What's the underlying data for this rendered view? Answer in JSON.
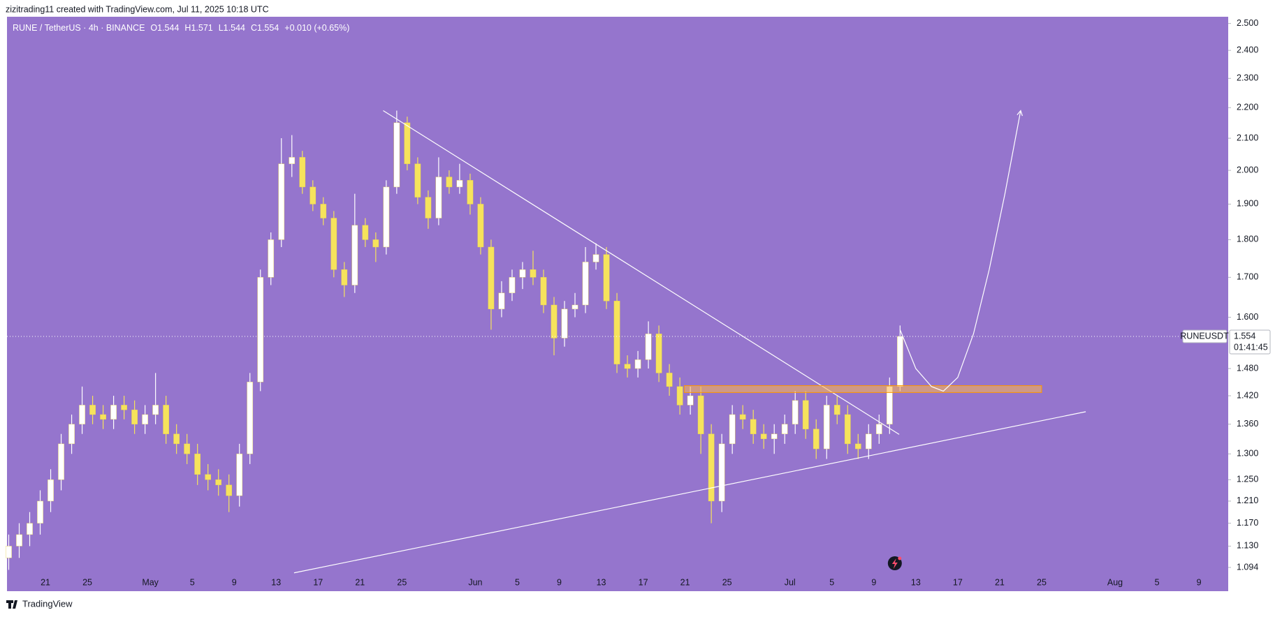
{
  "header": "zizitrading11 created with TradingView.com, Jul 11, 2025 10:18 UTC",
  "footer": "TradingView",
  "chart_data": {
    "type": "candlestick",
    "symbol": "RUNE / TetherUS · 4h · BINANCE",
    "quote": [
      "O1.544",
      "H1.571",
      "L1.544",
      "C1.554",
      "+0.010 (+0.65%)"
    ],
    "ticker": "RUNEUSDT",
    "last_price": 1.554,
    "countdown": "01:41:45",
    "up_color": "#ffffff",
    "down_color": "#f6e35c",
    "background": "#9575cd",
    "log_scale": true,
    "ylim": [
      1.079,
      2.515
    ],
    "yticks": [
      {
        "value": 2.5,
        "label": "2.500"
      },
      {
        "value": 2.4,
        "label": "2.400"
      },
      {
        "value": 2.3,
        "label": "2.300"
      },
      {
        "value": 2.2,
        "label": "2.200"
      },
      {
        "value": 2.1,
        "label": "2.100"
      },
      {
        "value": 2.0,
        "label": "2.000"
      },
      {
        "value": 1.9,
        "label": "1.900"
      },
      {
        "value": 1.8,
        "label": "1.800"
      },
      {
        "value": 1.7,
        "label": "1.700"
      },
      {
        "value": 1.6,
        "label": "1.600"
      },
      {
        "value": 1.48,
        "label": "1.480"
      },
      {
        "value": 1.42,
        "label": "1.420"
      },
      {
        "value": 1.36,
        "label": "1.360"
      },
      {
        "value": 1.3,
        "label": "1.300"
      },
      {
        "value": 1.25,
        "label": "1.250"
      },
      {
        "value": 1.21,
        "label": "1.210"
      },
      {
        "value": 1.17,
        "label": "1.170"
      },
      {
        "value": 1.13,
        "label": "1.130"
      },
      1.094
    ],
    "xlim": [
      "2025-04-17T08:00",
      "2025-08-11T19:00"
    ],
    "xticks": [
      {
        "value": "2025-04-21",
        "label": "21"
      },
      {
        "value": "2025-04-25",
        "label": "25"
      },
      {
        "value": "2025-05-01",
        "label": "May"
      },
      {
        "value": "2025-05-05",
        "label": "5"
      },
      {
        "value": "2025-05-09",
        "label": "9"
      },
      {
        "value": "2025-05-13",
        "label": "13"
      },
      {
        "value": "2025-05-17",
        "label": "17"
      },
      {
        "value": "2025-05-21",
        "label": "21"
      },
      {
        "value": "2025-05-25",
        "label": "25"
      },
      {
        "value": "2025-06-01",
        "label": "Jun"
      },
      {
        "value": "2025-06-05",
        "label": "5"
      },
      {
        "value": "2025-06-09",
        "label": "9"
      },
      {
        "value": "2025-06-13",
        "label": "13"
      },
      {
        "value": "2025-06-17",
        "label": "17"
      },
      {
        "value": "2025-06-21",
        "label": "21"
      },
      {
        "value": "2025-06-25",
        "label": "25"
      },
      {
        "value": "2025-07-01",
        "label": "Jul"
      },
      {
        "value": "2025-07-05",
        "label": "5"
      },
      {
        "value": "2025-07-09",
        "label": "9"
      },
      {
        "value": "2025-07-13",
        "label": "13"
      },
      {
        "value": "2025-07-17",
        "label": "17"
      },
      {
        "value": "2025-07-21",
        "label": "21"
      },
      {
        "value": "2025-07-25",
        "label": "25"
      },
      {
        "value": "2025-08-01",
        "label": "Aug"
      },
      {
        "value": "2025-08-05",
        "label": "5"
      },
      {
        "value": "2025-08-09",
        "label": "9"
      }
    ],
    "x": [
      "2025-04-17",
      "2025-04-18",
      "2025-04-19",
      "2025-04-20",
      "2025-04-21",
      "2025-04-22",
      "2025-04-23",
      "2025-04-24",
      "2025-04-25",
      "2025-04-26",
      "2025-04-27",
      "2025-04-28",
      "2025-04-29",
      "2025-04-30",
      "2025-05-01",
      "2025-05-02",
      "2025-05-03",
      "2025-05-04",
      "2025-05-05",
      "2025-05-06",
      "2025-05-07",
      "2025-05-08",
      "2025-05-09",
      "2025-05-10",
      "2025-05-11",
      "2025-05-12",
      "2025-05-13",
      "2025-05-14",
      "2025-05-15",
      "2025-05-16",
      "2025-05-17",
      "2025-05-18",
      "2025-05-19",
      "2025-05-20",
      "2025-05-21",
      "2025-05-22",
      "2025-05-23",
      "2025-05-24",
      "2025-05-25",
      "2025-05-26",
      "2025-05-27",
      "2025-05-28",
      "2025-05-29",
      "2025-05-30",
      "2025-05-31",
      "2025-06-01",
      "2025-06-02",
      "2025-06-03",
      "2025-06-04",
      "2025-06-05",
      "2025-06-06",
      "2025-06-07",
      "2025-06-08",
      "2025-06-09",
      "2025-06-10",
      "2025-06-11",
      "2025-06-12",
      "2025-06-13",
      "2025-06-14",
      "2025-06-15",
      "2025-06-16",
      "2025-06-17",
      "2025-06-18",
      "2025-06-19",
      "2025-06-20",
      "2025-06-21",
      "2025-06-22",
      "2025-06-23",
      "2025-06-24",
      "2025-06-25",
      "2025-06-26",
      "2025-06-27",
      "2025-06-28",
      "2025-06-29",
      "2025-06-30",
      "2025-07-01",
      "2025-07-02",
      "2025-07-03",
      "2025-07-04",
      "2025-07-05",
      "2025-07-06",
      "2025-07-07",
      "2025-07-08",
      "2025-07-09",
      "2025-07-10",
      "2025-07-11"
    ],
    "open": [
      1.11,
      1.13,
      1.15,
      1.17,
      1.21,
      1.25,
      1.32,
      1.36,
      1.4,
      1.38,
      1.37,
      1.4,
      1.39,
      1.36,
      1.38,
      1.4,
      1.34,
      1.32,
      1.3,
      1.26,
      1.25,
      1.24,
      1.22,
      1.3,
      1.45,
      1.7,
      1.8,
      2.02,
      2.04,
      1.95,
      1.9,
      1.86,
      1.72,
      1.68,
      1.84,
      1.8,
      1.78,
      1.95,
      2.15,
      2.02,
      1.92,
      1.86,
      1.98,
      1.95,
      1.97,
      1.9,
      1.78,
      1.62,
      1.66,
      1.7,
      1.72,
      1.7,
      1.63,
      1.55,
      1.62,
      1.63,
      1.74,
      1.76,
      1.64,
      1.49,
      1.48,
      1.5,
      1.56,
      1.47,
      1.44,
      1.4,
      1.42,
      1.34,
      1.21,
      1.32,
      1.38,
      1.37,
      1.34,
      1.33,
      1.34,
      1.36,
      1.41,
      1.35,
      1.31,
      1.4,
      1.38,
      1.32,
      1.31,
      1.34,
      1.36,
      1.44
    ],
    "high": [
      1.15,
      1.17,
      1.19,
      1.23,
      1.27,
      1.34,
      1.38,
      1.44,
      1.42,
      1.4,
      1.42,
      1.42,
      1.41,
      1.4,
      1.47,
      1.42,
      1.36,
      1.34,
      1.32,
      1.28,
      1.27,
      1.26,
      1.32,
      1.47,
      1.72,
      1.82,
      2.1,
      2.11,
      2.06,
      1.97,
      1.92,
      1.88,
      1.74,
      1.93,
      1.86,
      1.82,
      1.97,
      2.19,
      2.17,
      2.04,
      1.94,
      2.04,
      2.0,
      2.02,
      1.99,
      1.92,
      1.8,
      1.69,
      1.72,
      1.74,
      1.77,
      1.72,
      1.65,
      1.64,
      1.66,
      1.78,
      1.79,
      1.78,
      1.66,
      1.51,
      1.52,
      1.59,
      1.58,
      1.49,
      1.46,
      1.44,
      1.44,
      1.36,
      1.34,
      1.4,
      1.4,
      1.39,
      1.36,
      1.36,
      1.38,
      1.43,
      1.43,
      1.37,
      1.42,
      1.42,
      1.4,
      1.34,
      1.36,
      1.38,
      1.46,
      1.58
    ],
    "low": [
      1.09,
      1.11,
      1.13,
      1.15,
      1.19,
      1.23,
      1.3,
      1.34,
      1.36,
      1.35,
      1.35,
      1.37,
      1.34,
      1.34,
      1.36,
      1.32,
      1.3,
      1.28,
      1.24,
      1.23,
      1.22,
      1.19,
      1.2,
      1.28,
      1.43,
      1.68,
      1.78,
      1.98,
      1.93,
      1.88,
      1.84,
      1.7,
      1.65,
      1.66,
      1.78,
      1.74,
      1.76,
      1.93,
      2.0,
      1.9,
      1.83,
      1.84,
      1.93,
      1.93,
      1.87,
      1.76,
      1.57,
      1.6,
      1.64,
      1.67,
      1.68,
      1.61,
      1.51,
      1.53,
      1.6,
      1.61,
      1.72,
      1.62,
      1.47,
      1.46,
      1.46,
      1.48,
      1.45,
      1.42,
      1.38,
      1.38,
      1.3,
      1.17,
      1.19,
      1.3,
      1.35,
      1.32,
      1.31,
      1.3,
      1.32,
      1.34,
      1.33,
      1.29,
      1.29,
      1.36,
      1.3,
      1.29,
      1.29,
      1.32,
      1.34,
      1.43
    ],
    "close": [
      1.13,
      1.15,
      1.17,
      1.21,
      1.25,
      1.32,
      1.36,
      1.4,
      1.38,
      1.37,
      1.4,
      1.39,
      1.36,
      1.38,
      1.4,
      1.34,
      1.32,
      1.3,
      1.26,
      1.25,
      1.24,
      1.22,
      1.3,
      1.45,
      1.7,
      1.8,
      2.02,
      2.04,
      1.95,
      1.9,
      1.86,
      1.72,
      1.68,
      1.84,
      1.8,
      1.78,
      1.95,
      2.15,
      2.02,
      1.92,
      1.86,
      1.98,
      1.95,
      1.97,
      1.9,
      1.78,
      1.62,
      1.66,
      1.7,
      1.72,
      1.7,
      1.63,
      1.55,
      1.62,
      1.63,
      1.74,
      1.76,
      1.64,
      1.49,
      1.48,
      1.5,
      1.56,
      1.47,
      1.44,
      1.4,
      1.42,
      1.34,
      1.21,
      1.32,
      1.38,
      1.37,
      1.34,
      1.33,
      1.34,
      1.36,
      1.41,
      1.35,
      1.31,
      1.4,
      1.38,
      1.32,
      1.31,
      1.34,
      1.36,
      1.44,
      1.554
    ],
    "trendlines": [
      {
        "x": [
          "2025-05-23T05:00",
          "2025-07-11T10:00"
        ],
        "y": [
          2.19,
          1.339
        ],
        "color": "#ffffff"
      },
      {
        "x": [
          "2025-05-14T17:00",
          "2025-07-29T05:00"
        ],
        "y": [
          1.085,
          1.386
        ],
        "color": "#ffffff"
      }
    ],
    "zone": {
      "x": [
        "2025-06-20T22:00",
        "2025-07-25T00:00"
      ],
      "y": [
        1.442,
        1.427
      ],
      "color": "#ffb74d"
    },
    "projection": {
      "x": [
        "2025-07-11T12:00",
        "2025-07-13T00:00",
        "2025-07-14T12:00",
        "2025-07-15T15:00",
        "2025-07-17T00:00",
        "2025-07-18T12:00",
        "2025-07-20T00:00",
        "2025-07-21T12:00",
        "2025-07-23T00:00"
      ],
      "y": [
        1.57,
        1.48,
        1.44,
        1.43,
        1.46,
        1.56,
        1.72,
        1.93,
        2.19
      ],
      "color": "#ffffff"
    }
  }
}
